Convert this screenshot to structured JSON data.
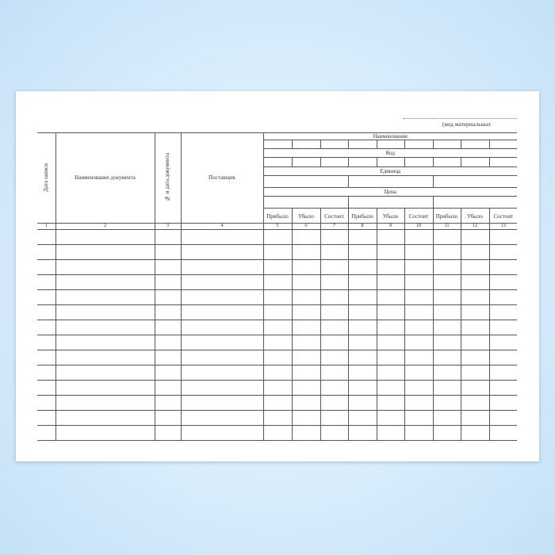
{
  "header_note": "(вид материальных",
  "columns": {
    "date": "Дата записи",
    "doc_name": "Наименование документа",
    "doc_num": "№ и дата документа",
    "supplier": "Поставщик"
  },
  "groups": {
    "name": "Наименование",
    "code": "Код",
    "unit": "Единица",
    "price": "Цена"
  },
  "sub_labels": [
    "Прибыло",
    "Убыло",
    "Состоит",
    "Прибыло",
    "Убыло",
    "Состоит",
    "Прибыло",
    "Убыло",
    "Состоит"
  ],
  "column_numbers": [
    "1",
    "2",
    "3",
    "4",
    "5",
    "6",
    "7",
    "8",
    "9",
    "10",
    "11",
    "12",
    "13"
  ],
  "body_rows": 14
}
